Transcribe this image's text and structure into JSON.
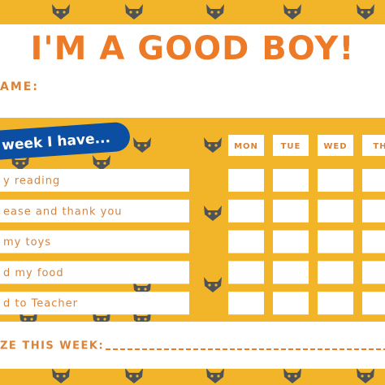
{
  "header": {
    "title": "I'M A GOOD BOY!",
    "name_label": "AME:"
  },
  "pill": "week I have...",
  "days": [
    "MON",
    "TUE",
    "WED",
    "TH"
  ],
  "tasks": [
    "y reading",
    "ease and thank you",
    "my toys",
    "d my food",
    "d to Teacher"
  ],
  "prize_label": "ZE THIS WEEK:"
}
